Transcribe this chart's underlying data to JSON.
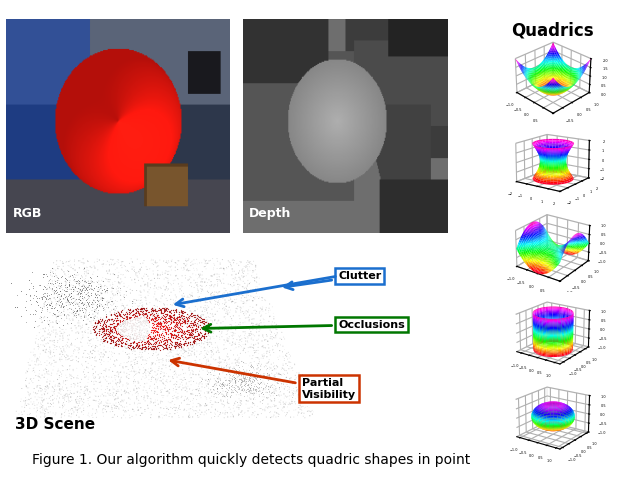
{
  "title": "Quadrics",
  "caption": "Figure 1. Our algorithm quickly detects quadric shapes in point",
  "labels": {
    "rgb": "RGB",
    "depth": "Depth",
    "scene": "3D Scene"
  },
  "clutter_color": "#1B6FCE",
  "occlusions_color": "#007700",
  "partial_color": "#CC3300",
  "bg_color": "#ffffff",
  "quadrics_title_fontsize": 12,
  "caption_fontsize": 10,
  "label_fontsize": 9,
  "scene_label_fontsize": 11
}
